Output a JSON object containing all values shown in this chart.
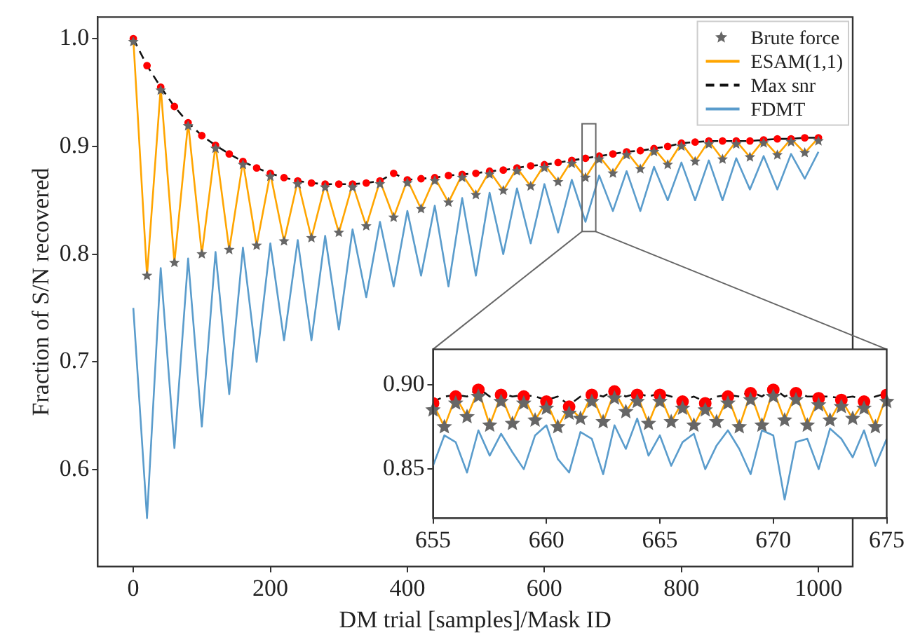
{
  "chart_data": [
    {
      "type": "line",
      "xlabel": "DM trial [samples]/Mask ID",
      "ylabel": "Fraction of S/N recovered",
      "xlim": [
        -52,
        1050
      ],
      "ylim": [
        0.51,
        1.02
      ],
      "xticks": [
        0,
        200,
        400,
        600,
        800,
        1000
      ],
      "yticks": [
        0.6,
        0.7,
        0.8,
        0.9,
        {
          "value": 1.0,
          "label": "1.0"
        }
      ],
      "grid": false,
      "legend": "top right",
      "x": [
        0,
        20,
        40,
        60,
        80,
        100,
        120,
        140,
        160,
        180,
        200,
        220,
        240,
        260,
        280,
        300,
        320,
        340,
        360,
        380,
        400,
        420,
        440,
        460,
        480,
        500,
        520,
        540,
        560,
        580,
        600,
        620,
        640,
        660,
        680,
        700,
        720,
        740,
        760,
        780,
        800,
        820,
        840,
        860,
        880,
        900,
        920,
        940,
        960,
        980,
        1000
      ],
      "series": [
        {
          "name": "Brute force",
          "type": "scatter",
          "marker": "star",
          "color": "#666666",
          "values": [
            0.997,
            0.78,
            0.952,
            0.792,
            0.919,
            0.8,
            0.898,
            0.804,
            0.883,
            0.808,
            0.872,
            0.812,
            0.865,
            0.815,
            0.862,
            0.82,
            0.862,
            0.826,
            0.865,
            0.834,
            0.866,
            0.842,
            0.868,
            0.848,
            0.871,
            0.855,
            0.874,
            0.859,
            0.877,
            0.863,
            0.88,
            0.867,
            0.884,
            0.871,
            0.888,
            0.875,
            0.892,
            0.879,
            0.895,
            0.883,
            0.9,
            0.886,
            0.902,
            0.888,
            0.902,
            0.89,
            0.903,
            0.892,
            0.904,
            0.894,
            0.905
          ]
        },
        {
          "name": "ESAM(1,1)",
          "type": "line",
          "line_style": "solid",
          "color": "#ffa500",
          "values": [
            1.0,
            0.78,
            0.955,
            0.792,
            0.922,
            0.8,
            0.901,
            0.804,
            0.886,
            0.808,
            0.875,
            0.812,
            0.868,
            0.815,
            0.865,
            0.82,
            0.865,
            0.826,
            0.868,
            0.834,
            0.869,
            0.842,
            0.871,
            0.848,
            0.874,
            0.855,
            0.877,
            0.859,
            0.88,
            0.863,
            0.883,
            0.867,
            0.887,
            0.871,
            0.891,
            0.875,
            0.895,
            0.879,
            0.898,
            0.883,
            0.903,
            0.886,
            0.905,
            0.888,
            0.905,
            0.89,
            0.906,
            0.892,
            0.907,
            0.894,
            0.908
          ]
        },
        {
          "name": "Max snr",
          "type": "line",
          "line_style": "dashed",
          "color": "#111111",
          "values": [
            1.0,
            0.975,
            0.955,
            0.937,
            0.922,
            0.91,
            0.901,
            0.893,
            0.886,
            0.88,
            0.875,
            0.871,
            0.868,
            0.866,
            0.865,
            0.865,
            0.865,
            0.866,
            0.868,
            0.875,
            0.869,
            0.87,
            0.871,
            0.873,
            0.874,
            0.875,
            0.877,
            0.878,
            0.88,
            0.882,
            0.883,
            0.885,
            0.887,
            0.889,
            0.891,
            0.893,
            0.895,
            0.896,
            0.898,
            0.9,
            0.903,
            0.904,
            0.905,
            0.905,
            0.905,
            0.905,
            0.906,
            0.907,
            0.907,
            0.908,
            0.908
          ]
        },
        {
          "name": "FDMT",
          "type": "line",
          "line_style": "solid",
          "color": "#5a9ccc",
          "values": [
            0.75,
            0.555,
            0.787,
            0.62,
            0.796,
            0.64,
            0.802,
            0.67,
            0.806,
            0.7,
            0.81,
            0.72,
            0.813,
            0.72,
            0.817,
            0.73,
            0.823,
            0.76,
            0.83,
            0.77,
            0.84,
            0.78,
            0.845,
            0.77,
            0.852,
            0.78,
            0.857,
            0.8,
            0.861,
            0.81,
            0.865,
            0.82,
            0.869,
            0.83,
            0.873,
            0.84,
            0.877,
            0.84,
            0.881,
            0.85,
            0.885,
            0.85,
            0.887,
            0.85,
            0.889,
            0.86,
            0.891,
            0.86,
            0.893,
            0.87,
            0.895
          ]
        },
        {
          "type": "scatter",
          "marker": "circle",
          "color": "#ff0000",
          "values": [
            1.0,
            0.975,
            0.955,
            0.937,
            0.922,
            0.91,
            0.901,
            0.893,
            0.886,
            0.88,
            0.875,
            0.871,
            0.868,
            0.866,
            0.865,
            0.865,
            0.865,
            0.866,
            0.868,
            0.875,
            0.869,
            0.87,
            0.871,
            0.873,
            0.874,
            0.875,
            0.877,
            0.878,
            0.88,
            0.882,
            0.883,
            0.885,
            0.887,
            0.889,
            0.891,
            0.893,
            0.895,
            0.896,
            0.898,
            0.9,
            0.903,
            0.904,
            0.905,
            0.905,
            0.905,
            0.905,
            0.906,
            0.907,
            0.907,
            0.908,
            0.908
          ]
        }
      ]
    },
    {
      "type": "line",
      "xlim": [
        655,
        675
      ],
      "ylim": [
        0.821,
        0.921
      ],
      "xticks": [
        655,
        660,
        665,
        670,
        675
      ],
      "yticks": [
        {
          "value": 0.85,
          "label": "0.85"
        },
        {
          "value": 0.9,
          "label": "0.90"
        }
      ],
      "grid": false,
      "x": [
        655,
        655.5,
        656,
        656.5,
        657,
        657.5,
        658,
        658.5,
        659,
        659.5,
        660,
        660.5,
        661,
        661.5,
        662,
        662.5,
        663,
        663.5,
        664,
        664.5,
        665,
        665.5,
        666,
        666.5,
        667,
        667.5,
        668,
        668.5,
        669,
        669.5,
        670,
        670.5,
        671,
        671.5,
        672,
        672.5,
        673,
        673.5,
        674,
        674.5,
        675
      ],
      "series": [
        {
          "type": "scatter",
          "marker": "star",
          "color": "#666666",
          "values": [
            0.885,
            0.875,
            0.889,
            0.881,
            0.893,
            0.876,
            0.89,
            0.877,
            0.889,
            0.879,
            0.886,
            0.875,
            0.883,
            0.88,
            0.89,
            0.878,
            0.892,
            0.884,
            0.89,
            0.877,
            0.89,
            0.878,
            0.886,
            0.876,
            0.885,
            0.878,
            0.889,
            0.875,
            0.891,
            0.876,
            0.893,
            0.879,
            0.891,
            0.876,
            0.888,
            0.879,
            0.887,
            0.88,
            0.886,
            0.875,
            0.89
          ]
        },
        {
          "type": "line",
          "line_style": "solid",
          "color": "#ffa500",
          "values": [
            0.889,
            0.875,
            0.893,
            0.881,
            0.897,
            0.876,
            0.894,
            0.877,
            0.893,
            0.879,
            0.89,
            0.875,
            0.887,
            0.88,
            0.894,
            0.878,
            0.896,
            0.884,
            0.894,
            0.877,
            0.894,
            0.878,
            0.89,
            0.876,
            0.889,
            0.878,
            0.893,
            0.875,
            0.895,
            0.876,
            0.897,
            0.879,
            0.895,
            0.876,
            0.892,
            0.879,
            0.891,
            0.88,
            0.89,
            0.875,
            0.894
          ]
        },
        {
          "type": "line",
          "line_style": "dashed",
          "color": "#111111",
          "values": [
            0.89,
            0.893,
            0.894,
            0.893,
            0.898,
            0.893,
            0.895,
            0.893,
            0.894,
            0.893,
            0.891,
            0.893,
            0.888,
            0.893,
            0.895,
            0.893,
            0.897,
            0.893,
            0.895,
            0.893,
            0.895,
            0.893,
            0.891,
            0.893,
            0.89,
            0.893,
            0.894,
            0.893,
            0.896,
            0.893,
            0.898,
            0.893,
            0.896,
            0.893,
            0.893,
            0.893,
            0.892,
            0.893,
            0.891,
            0.893,
            0.895
          ]
        },
        {
          "type": "line",
          "line_style": "solid",
          "color": "#5a9ccc",
          "values": [
            0.852,
            0.87,
            0.866,
            0.848,
            0.873,
            0.858,
            0.871,
            0.86,
            0.85,
            0.87,
            0.876,
            0.856,
            0.848,
            0.872,
            0.868,
            0.847,
            0.876,
            0.862,
            0.88,
            0.858,
            0.87,
            0.852,
            0.866,
            0.871,
            0.85,
            0.864,
            0.873,
            0.862,
            0.847,
            0.873,
            0.87,
            0.832,
            0.866,
            0.868,
            0.85,
            0.874,
            0.868,
            0.857,
            0.873,
            0.852,
            0.868
          ]
        },
        {
          "type": "scatter",
          "marker": "circle",
          "color": "#ff0000",
          "x": [
            655,
            656,
            657,
            658,
            659,
            660,
            661,
            662,
            663,
            664,
            665,
            666,
            667,
            668,
            669,
            670,
            671,
            672,
            673,
            674,
            675
          ],
          "values": [
            0.889,
            0.893,
            0.897,
            0.894,
            0.893,
            0.89,
            0.887,
            0.894,
            0.896,
            0.894,
            0.894,
            0.89,
            0.889,
            0.893,
            0.895,
            0.897,
            0.895,
            0.892,
            0.891,
            0.89,
            0.894
          ]
        }
      ]
    }
  ]
}
